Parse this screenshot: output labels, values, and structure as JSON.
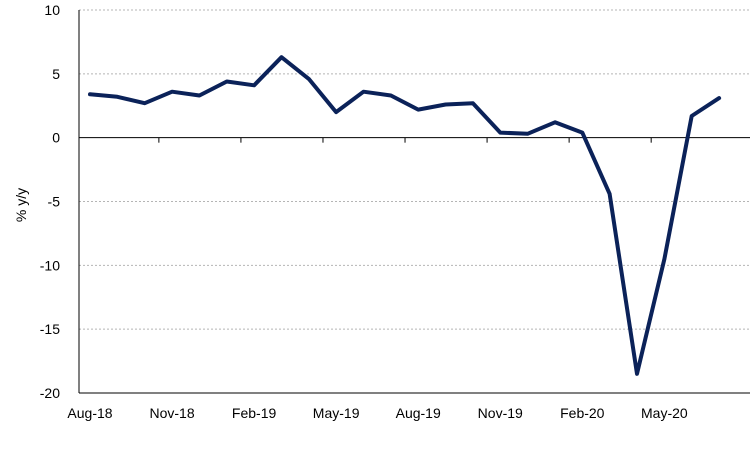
{
  "chart_data": {
    "type": "line",
    "ylabel": "% y/y",
    "xlabel": "",
    "ylim": [
      -20,
      10
    ],
    "y_ticks": [
      10,
      5,
      0,
      -5,
      -10,
      -15,
      -20
    ],
    "x_tick_labels": [
      "Aug-18",
      "Nov-18",
      "Feb-19",
      "May-19",
      "Aug-19",
      "Nov-19",
      "Feb-20",
      "May-20"
    ],
    "grid": "horizontal dotted",
    "categories": [
      "Aug-18",
      "Sep-18",
      "Oct-18",
      "Nov-18",
      "Dec-18",
      "Jan-19",
      "Feb-19",
      "Mar-19",
      "Apr-19",
      "May-19",
      "Jun-19",
      "Jul-19",
      "Aug-19",
      "Sep-19",
      "Oct-19",
      "Nov-19",
      "Dec-19",
      "Jan-20",
      "Feb-20",
      "Mar-20",
      "Apr-20",
      "May-20",
      "Jun-20",
      "Jul-20"
    ],
    "series": [
      {
        "color": "#0b2259",
        "values": [
          3.4,
          3.2,
          2.7,
          3.6,
          3.3,
          4.4,
          4.1,
          6.3,
          4.6,
          2.0,
          3.6,
          3.3,
          2.2,
          2.6,
          2.7,
          0.4,
          0.3,
          1.2,
          0.4,
          -4.4,
          -18.5,
          -9.5,
          1.7,
          3.1
        ]
      }
    ]
  }
}
